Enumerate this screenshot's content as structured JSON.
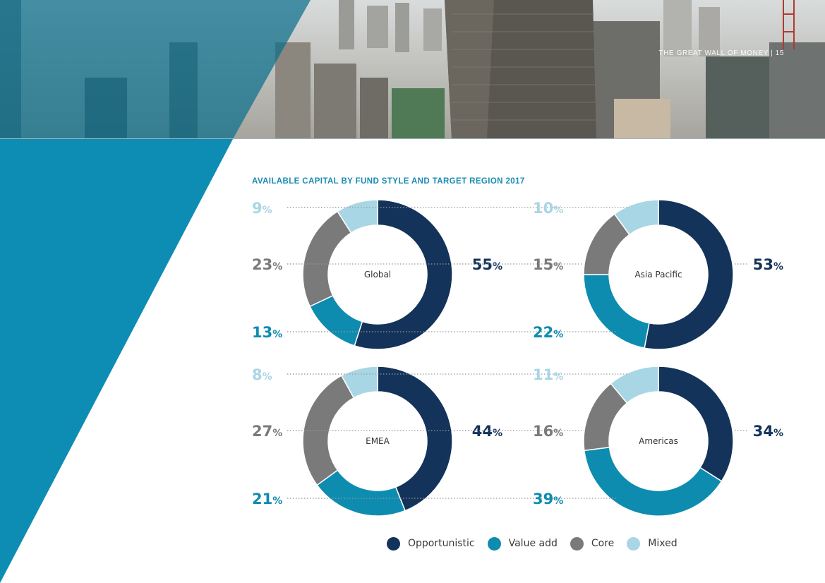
{
  "page_header": "THE GREAT WALL OF MONEY | 15",
  "colors": {
    "opportunistic": "#13335a",
    "value_add": "#0e8cb0",
    "core": "#7a7a7a",
    "mixed": "#a9d6e4",
    "accent": "#1a8bb3",
    "panel": "#0d8cb4"
  },
  "chart_data": {
    "type": "pie",
    "title": "AVAILABLE CAPITAL BY FUND STYLE AND TARGET REGION 2017",
    "variant": "donut",
    "unit": "%",
    "legend": [
      "Opportunistic",
      "Value add",
      "Core",
      "Mixed"
    ],
    "legend_position": "bottom",
    "charts": [
      {
        "region": "Global",
        "values": {
          "opportunistic": 55,
          "value_add": 13,
          "core": 23,
          "mixed": 9
        }
      },
      {
        "region": "Asia Pacific",
        "values": {
          "opportunistic": 53,
          "value_add": 22,
          "core": 15,
          "mixed": 10
        }
      },
      {
        "region": "EMEA",
        "values": {
          "opportunistic": 44,
          "value_add": 21,
          "core": 27,
          "mixed": 8
        }
      },
      {
        "region": "Americas",
        "values": {
          "opportunistic": 34,
          "value_add": 39,
          "core": 16,
          "mixed": 11
        }
      }
    ]
  }
}
